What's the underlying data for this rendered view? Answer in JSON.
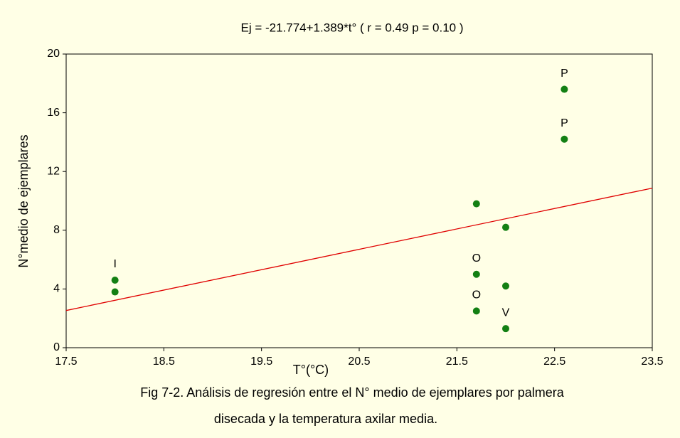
{
  "chart_data": {
    "type": "scatter",
    "title": "Ej = -21.774+1.389*t° ( r = 0.49     p = 0.10 )",
    "x_label": "T°(°C)",
    "y_label": "N°medio de ejemplares",
    "caption": [
      "Fig 7-2. Análisis de regresión entre el N° medio de ejemplares por palmera",
      "disecada y la temperatura axilar media."
    ],
    "x": [
      18.0,
      18.0,
      21.7,
      21.7,
      21.7,
      22.0,
      22.0,
      22.0,
      22.6,
      22.6
    ],
    "values": [
      4.6,
      3.8,
      9.8,
      5.0,
      2.5,
      8.2,
      4.2,
      1.3,
      17.6,
      14.2
    ],
    "point_labels": [
      "I",
      null,
      null,
      "O",
      "O",
      null,
      null,
      "V",
      "P",
      "P"
    ],
    "color": "#138013",
    "fit": {
      "intercept": -21.774,
      "slope": 1.389,
      "color": "#e00000"
    },
    "xlim": [
      17.5,
      23.5
    ],
    "xticks": [
      17.5,
      18.5,
      19.5,
      20.5,
      21.5,
      22.5,
      23.5
    ],
    "ylim": [
      0,
      20
    ],
    "yticks": [
      0,
      4,
      8,
      12,
      16,
      20
    ],
    "grid": false
  }
}
